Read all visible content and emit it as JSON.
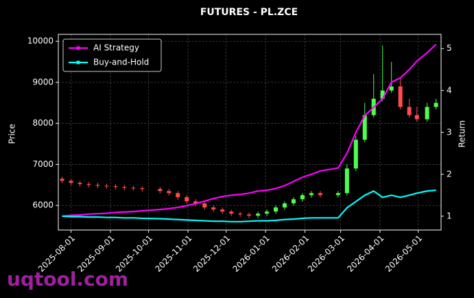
{
  "chart_data": {
    "type": "candlestick",
    "title": "FUTURES - PL.ZCE",
    "ylabel": "Price",
    "y2label": "Return",
    "watermark": "uqtool.com",
    "x": [
      "2025-07-25",
      "2025-08-01",
      "2025-08-08",
      "2025-08-15",
      "2025-08-22",
      "2025-08-29",
      "2025-09-05",
      "2025-09-12",
      "2025-09-19",
      "2025-09-26",
      "2025-10-10",
      "2025-10-17",
      "2025-10-24",
      "2025-10-31",
      "2025-11-07",
      "2025-11-14",
      "2025-11-21",
      "2025-11-28",
      "2025-12-05",
      "2025-12-12",
      "2025-12-19",
      "2025-12-26",
      "2026-01-02",
      "2026-01-09",
      "2026-01-16",
      "2026-01-23",
      "2026-01-30",
      "2026-02-06",
      "2026-02-13",
      "2026-02-27",
      "2026-03-06",
      "2026-03-13",
      "2026-03-20",
      "2026-03-27",
      "2026-04-03",
      "2026-04-10",
      "2026-04-17",
      "2026-04-24",
      "2026-04-30",
      "2026-05-08",
      "2026-05-15"
    ],
    "open": [
      6650,
      6600,
      6550,
      6520,
      6500,
      6480,
      6470,
      6450,
      6430,
      6420,
      6400,
      6350,
      6300,
      6200,
      6100,
      6050,
      5950,
      5900,
      5850,
      5800,
      5780,
      5750,
      5800,
      5850,
      5950,
      6050,
      6150,
      6250,
      6300,
      6250,
      6300,
      6900,
      7600,
      8200,
      8600,
      8800,
      8900,
      8400,
      8200,
      8100,
      8400
    ],
    "high": [
      6700,
      6650,
      6600,
      6570,
      6550,
      6530,
      6520,
      6500,
      6480,
      6470,
      6450,
      6400,
      6350,
      6250,
      6150,
      6100,
      6000,
      5950,
      5900,
      5850,
      5830,
      5850,
      5900,
      6000,
      6100,
      6200,
      6300,
      6350,
      6350,
      6350,
      7000,
      7700,
      8500,
      9200,
      9900,
      9500,
      9100,
      8600,
      8400,
      8500,
      8600
    ],
    "low": [
      6540,
      6490,
      6460,
      6440,
      6420,
      6410,
      6390,
      6370,
      6360,
      6340,
      6290,
      6240,
      6140,
      6040,
      5990,
      5890,
      5840,
      5790,
      5740,
      5720,
      5690,
      5690,
      5740,
      5790,
      5890,
      5990,
      6090,
      6190,
      6190,
      6190,
      6240,
      6840,
      7540,
      8140,
      8540,
      8740,
      8340,
      8140,
      8040,
      8040,
      8340
    ],
    "close": [
      6600,
      6550,
      6520,
      6500,
      6480,
      6470,
      6450,
      6430,
      6420,
      6400,
      6350,
      6300,
      6200,
      6100,
      6050,
      5950,
      5900,
      5850,
      5800,
      5780,
      5750,
      5800,
      5850,
      5950,
      6050,
      6150,
      6250,
      6300,
      6250,
      6300,
      6900,
      7600,
      8200,
      8600,
      8800,
      8900,
      8400,
      8200,
      8100,
      8400,
      8500
    ],
    "up_color": "#4dff4d",
    "down_color": "#ff4d4d",
    "series": [
      {
        "name": "AI Strategy",
        "color": "#ff00ff",
        "axis": "y2",
        "values": [
          1.0,
          1.02,
          1.03,
          1.05,
          1.06,
          1.07,
          1.09,
          1.1,
          1.11,
          1.13,
          1.16,
          1.18,
          1.21,
          1.25,
          1.3,
          1.36,
          1.42,
          1.47,
          1.5,
          1.52,
          1.55,
          1.6,
          1.62,
          1.66,
          1.73,
          1.83,
          1.93,
          2.0,
          2.08,
          2.15,
          2.5,
          3.0,
          3.4,
          3.6,
          3.8,
          4.2,
          4.3,
          4.5,
          4.7,
          4.9,
          5.1
        ]
      },
      {
        "name": "Buy-and-Hold",
        "color": "#00ffff",
        "axis": "y2",
        "values": [
          1.0,
          0.99,
          0.99,
          0.98,
          0.98,
          0.97,
          0.97,
          0.96,
          0.96,
          0.95,
          0.94,
          0.93,
          0.92,
          0.91,
          0.9,
          0.89,
          0.88,
          0.88,
          0.87,
          0.87,
          0.88,
          0.89,
          0.89,
          0.9,
          0.92,
          0.93,
          0.95,
          0.96,
          0.96,
          0.96,
          1.2,
          1.35,
          1.5,
          1.6,
          1.45,
          1.5,
          1.45,
          1.5,
          1.55,
          1.6,
          1.62
        ]
      }
    ],
    "xlim": [
      "2025-07-22",
      "2026-05-19"
    ],
    "xticks": [
      "2025-08-01",
      "2025-09-01",
      "2025-10-01",
      "2025-11-01",
      "2025-12-01",
      "2026-01-01",
      "2026-02-01",
      "2026-03-01",
      "2026-04-01",
      "2026-05-01"
    ],
    "ylim": [
      5400,
      10170
    ],
    "yticks": [
      6000,
      7000,
      8000,
      9000,
      10000
    ],
    "y2lim": [
      0.67,
      5.34
    ],
    "y2ticks": [
      1,
      2,
      3,
      4,
      5
    ],
    "grid": true,
    "legend": "upper left"
  }
}
